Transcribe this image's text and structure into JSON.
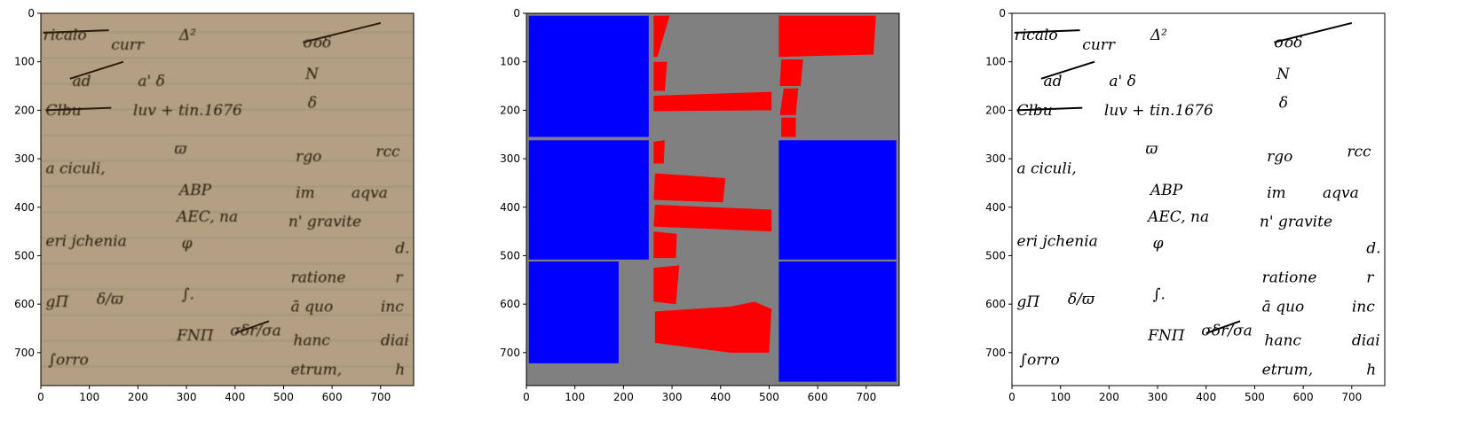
{
  "figure": {
    "panels": [
      {
        "id": "original-scan",
        "xlim": [
          0,
          768
        ],
        "ylim": [
          768,
          0
        ],
        "xticks": [
          "0",
          "100",
          "200",
          "300",
          "400",
          "500",
          "600",
          "700"
        ],
        "yticks": [
          "0",
          "100",
          "200",
          "300",
          "400",
          "500",
          "600",
          "700"
        ],
        "background": "#b3a082"
      },
      {
        "id": "segmentation-mask",
        "xlim": [
          0,
          768
        ],
        "ylim": [
          768,
          0
        ],
        "xticks": [
          "0",
          "100",
          "200",
          "300",
          "400",
          "500",
          "600",
          "700"
        ],
        "yticks": [
          "0",
          "100",
          "200",
          "300",
          "400",
          "500",
          "600",
          "700"
        ],
        "colors": {
          "background": "#808080",
          "block": "#0000ff",
          "line": "#ff0000"
        },
        "blocks": [
          [
            5,
            5,
            252,
            255
          ],
          [
            5,
            262,
            252,
            508
          ],
          [
            5,
            512,
            190,
            722
          ],
          [
            520,
            262,
            762,
            508
          ],
          [
            520,
            512,
            762,
            760
          ]
        ],
        "lines": [
          [
            [
              262,
              5
            ],
            [
              295,
              5
            ],
            [
              270,
              90
            ],
            [
              262,
              90
            ]
          ],
          [
            [
              262,
              100
            ],
            [
              290,
              100
            ],
            [
              285,
              160
            ],
            [
              262,
              160
            ]
          ],
          [
            [
              262,
              170
            ],
            [
              505,
              162
            ],
            [
              505,
              200
            ],
            [
              262,
              202
            ]
          ],
          [
            [
              262,
              265
            ],
            [
              285,
              262
            ],
            [
              283,
              310
            ],
            [
              262,
              310
            ]
          ],
          [
            [
              265,
              330
            ],
            [
              410,
              340
            ],
            [
              405,
              390
            ],
            [
              262,
              385
            ]
          ],
          [
            [
              265,
              395
            ],
            [
              505,
              405
            ],
            [
              505,
              450
            ],
            [
              262,
              440
            ]
          ],
          [
            [
              262,
              450
            ],
            [
              310,
              455
            ],
            [
              308,
              505
            ],
            [
              262,
              505
            ]
          ],
          [
            [
              262,
              525
            ],
            [
              315,
              520
            ],
            [
              308,
              600
            ],
            [
              262,
              595
            ]
          ],
          [
            [
              265,
              615
            ],
            [
              420,
              605
            ],
            [
              470,
              595
            ],
            [
              505,
              610
            ],
            [
              500,
              700
            ],
            [
              420,
              700
            ],
            [
              265,
              680
            ]
          ],
          [
            [
              520,
              5
            ],
            [
              720,
              5
            ],
            [
              715,
              85
            ],
            [
              520,
              90
            ]
          ],
          [
            [
              525,
              95
            ],
            [
              570,
              95
            ],
            [
              565,
              150
            ],
            [
              522,
              150
            ]
          ],
          [
            [
              530,
              155
            ],
            [
              560,
              155
            ],
            [
              555,
              210
            ],
            [
              522,
              210
            ]
          ],
          [
            [
              525,
              215
            ],
            [
              555,
              215
            ],
            [
              555,
              255
            ],
            [
              525,
              255
            ]
          ]
        ]
      },
      {
        "id": "binarized-scan",
        "xlim": [
          0,
          768
        ],
        "ylim": [
          768,
          0
        ],
        "xticks": [
          "0",
          "100",
          "200",
          "300",
          "400",
          "500",
          "600",
          "700"
        ],
        "yticks": [
          "0",
          "100",
          "200",
          "300",
          "400",
          "500",
          "600",
          "700"
        ],
        "background": "#ffffff"
      }
    ],
    "handwriting": [
      {
        "x": 5,
        "y": 55,
        "text": "ricalo"
      },
      {
        "x": 145,
        "y": 75,
        "text": "curr"
      },
      {
        "x": 285,
        "y": 55,
        "text": "Δ²"
      },
      {
        "x": 540,
        "y": 70,
        "text": "σοδ"
      },
      {
        "x": 65,
        "y": 150,
        "text": "ad"
      },
      {
        "x": 200,
        "y": 150,
        "text": "a' δ"
      },
      {
        "x": 545,
        "y": 135,
        "text": "N"
      },
      {
        "x": 10,
        "y": 210,
        "text": "Clbu"
      },
      {
        "x": 190,
        "y": 210,
        "text": "luv + tin.1676"
      },
      {
        "x": 550,
        "y": 195,
        "text": "δ"
      },
      {
        "x": 275,
        "y": 290,
        "text": "ϖ"
      },
      {
        "x": 525,
        "y": 305,
        "text": "rgo"
      },
      {
        "x": 690,
        "y": 295,
        "text": "rcc"
      },
      {
        "x": 10,
        "y": 330,
        "text": "a ciculi,"
      },
      {
        "x": 285,
        "y": 375,
        "text": "ABP"
      },
      {
        "x": 525,
        "y": 380,
        "text": "im"
      },
      {
        "x": 640,
        "y": 380,
        "text": "aqva"
      },
      {
        "x": 280,
        "y": 430,
        "text": "AEC, na"
      },
      {
        "x": 510,
        "y": 440,
        "text": "n' gravite"
      },
      {
        "x": 10,
        "y": 480,
        "text": "eri jchenia"
      },
      {
        "x": 290,
        "y": 485,
        "text": "φ"
      },
      {
        "x": 730,
        "y": 495,
        "text": "d."
      },
      {
        "x": 515,
        "y": 555,
        "text": "ratione"
      },
      {
        "x": 730,
        "y": 555,
        "text": "r"
      },
      {
        "x": 10,
        "y": 605,
        "text": "gΠ"
      },
      {
        "x": 115,
        "y": 600,
        "text": "δ/ϖ"
      },
      {
        "x": 290,
        "y": 590,
        "text": "∫."
      },
      {
        "x": 515,
        "y": 615,
        "text": "ā quo"
      },
      {
        "x": 700,
        "y": 615,
        "text": "inc"
      },
      {
        "x": 280,
        "y": 675,
        "text": "FNΠ"
      },
      {
        "x": 390,
        "y": 665,
        "text": "σδr/σa"
      },
      {
        "x": 520,
        "y": 685,
        "text": "hanc"
      },
      {
        "x": 700,
        "y": 685,
        "text": "diai"
      },
      {
        "x": 15,
        "y": 725,
        "text": "∫orro"
      },
      {
        "x": 515,
        "y": 745,
        "text": "etrum,"
      },
      {
        "x": 730,
        "y": 745,
        "text": "h"
      }
    ]
  }
}
